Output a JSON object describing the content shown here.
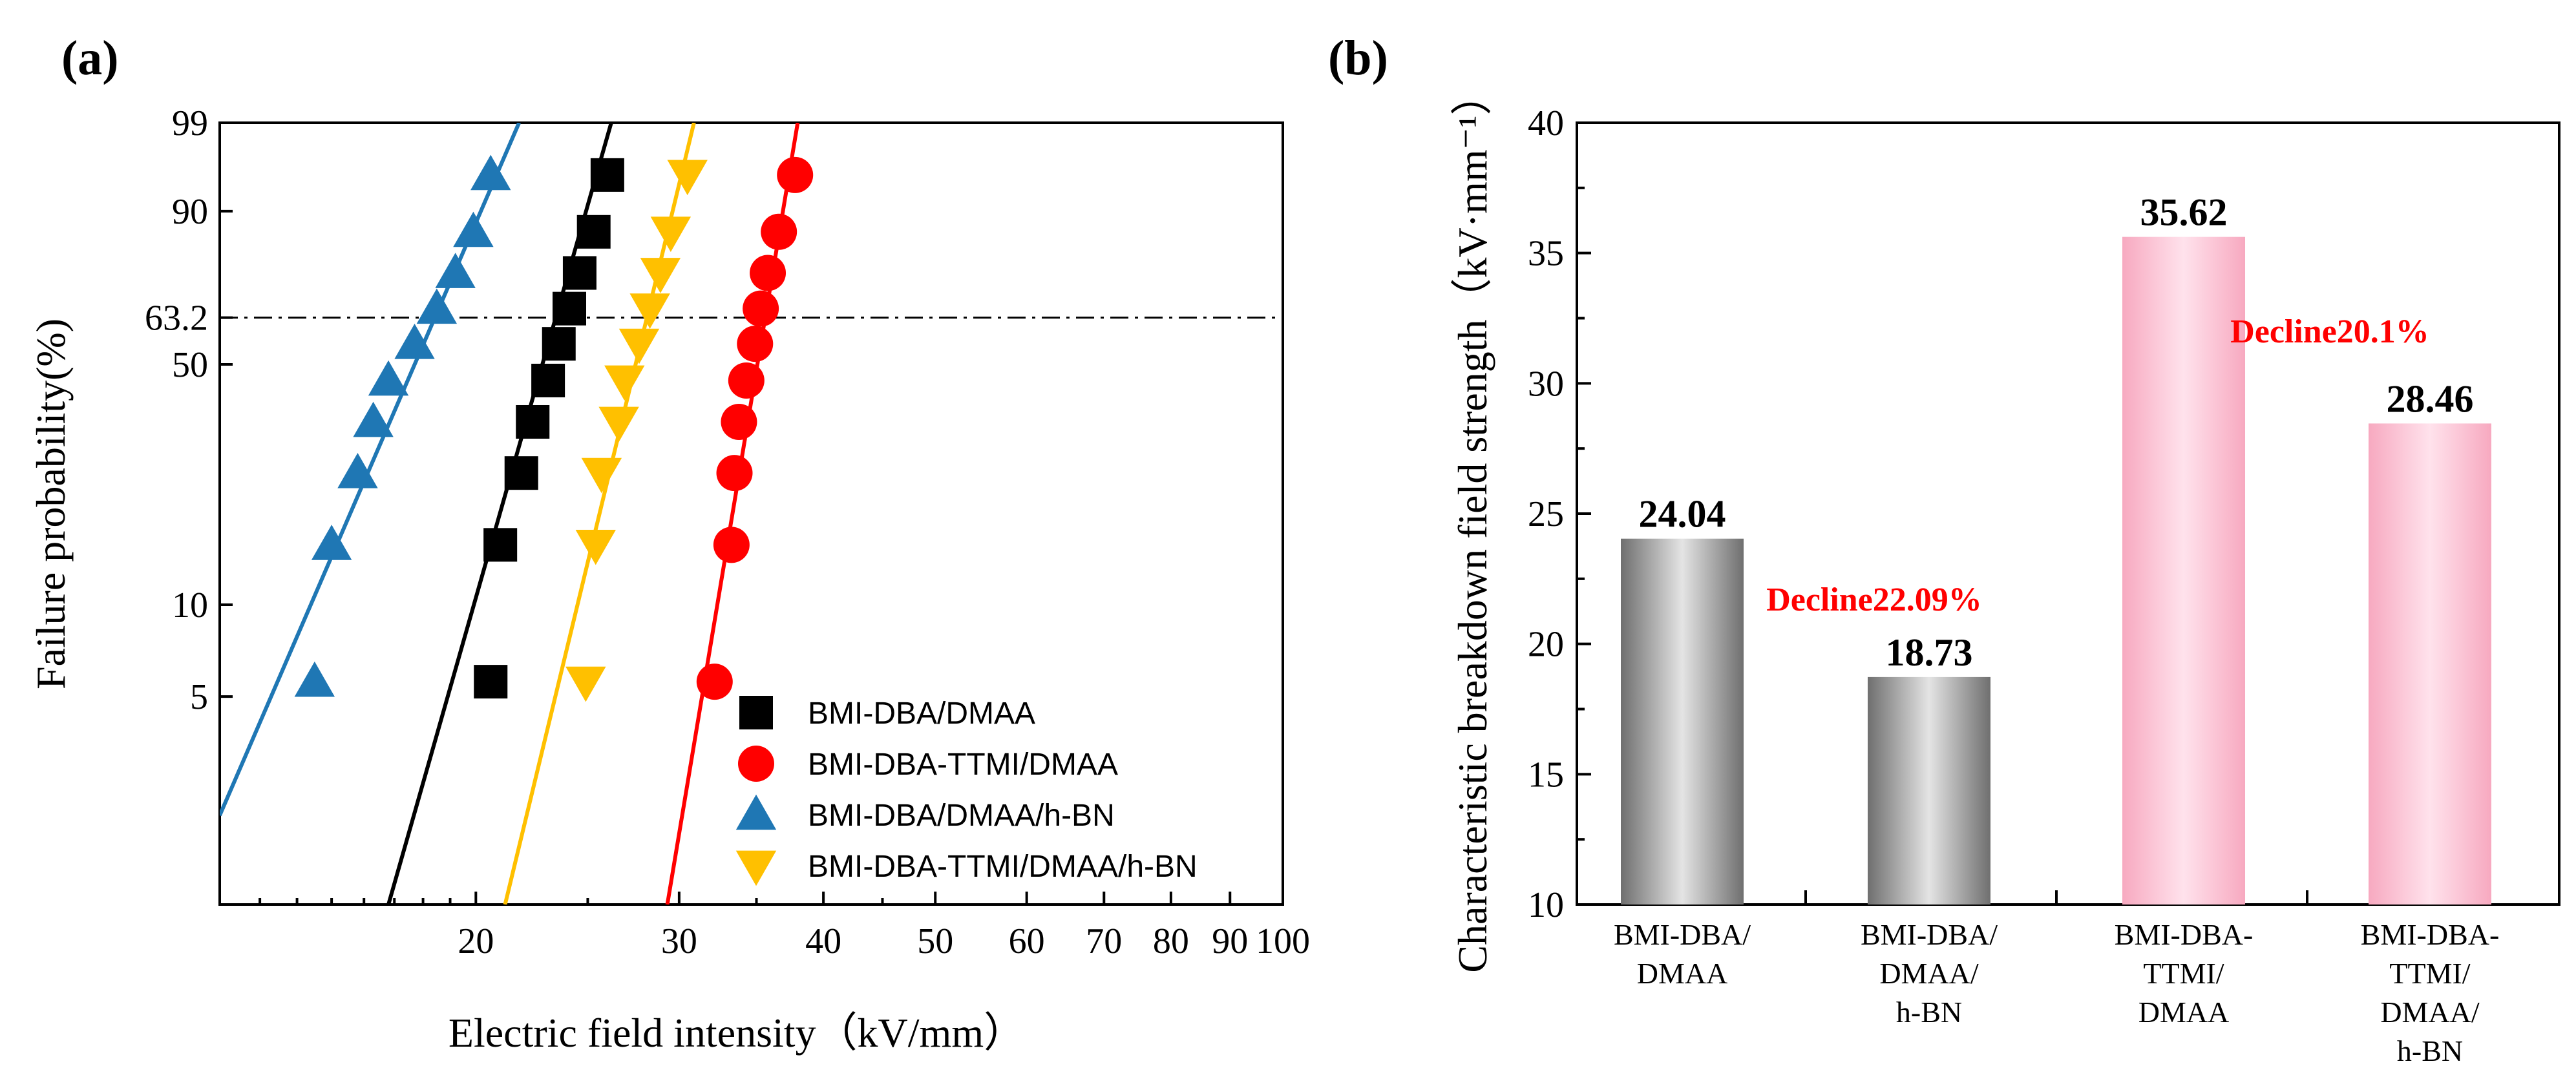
{
  "panel_a": {
    "label": "(a)",
    "xlabel": "Electric field intensity（kV/mm）",
    "ylabel": "Failure probability(%)",
    "x_ticks": [
      {
        "value": 20,
        "label": "20"
      },
      {
        "value": 30,
        "label": "30"
      },
      {
        "value": 40,
        "label": "40"
      },
      {
        "value": 50,
        "label": "50"
      },
      {
        "value": 60,
        "label": "60"
      },
      {
        "value": 70,
        "label": "70"
      },
      {
        "value": 80,
        "label": "80"
      },
      {
        "value": 90,
        "label": "90"
      },
      {
        "value": 100,
        "label": "100"
      }
    ],
    "y_ticks": [
      {
        "value": 5,
        "label": "5"
      },
      {
        "value": 10,
        "label": "10"
      },
      {
        "value": 50,
        "label": "50"
      },
      {
        "value": 63.2,
        "label": "63.2"
      },
      {
        "value": 90,
        "label": "90"
      },
      {
        "value": 99,
        "label": "99"
      }
    ]
  },
  "panel_b": {
    "label": "(b)",
    "ylabel": "Characteristic breakdown field strength（kV·mm⁻¹）",
    "y_ticks": [
      "10",
      "15",
      "20",
      "25",
      "30",
      "35",
      "40"
    ],
    "categories": [
      [
        "BMI-DBA/",
        "DMAA"
      ],
      [
        "BMI-DBA/",
        "DMAA/",
        "h-BN"
      ],
      [
        "BMI-DBA-",
        "TTMI/",
        "DMAA"
      ],
      [
        "BMI-DBA-",
        "TTMI/",
        "DMAA/",
        "h-BN"
      ]
    ],
    "value_labels": [
      "24.04",
      "18.73",
      "35.62",
      "28.46"
    ],
    "annotations": [
      "Decline22.09%",
      "Decline20.1%"
    ]
  },
  "chart_data": [
    {
      "type": "scatter",
      "title": "(a)",
      "xlabel": "Electric field intensity（kV/mm）",
      "ylabel": "Failure probability(%)",
      "xscale": "log",
      "yscale": "weibull",
      "xlim": [
        12,
        100
      ],
      "ylim": [
        1,
        99
      ],
      "reference_line": {
        "y": 63.2,
        "style": "dash-dot"
      },
      "legend_position": "lower-right",
      "series": [
        {
          "name": "BMI-DBA/DMAA",
          "marker": "square",
          "color": "#000000",
          "x": [
            20.6,
            21.0,
            21.9,
            22.4,
            23.1,
            23.6,
            24.1,
            24.6,
            25.3,
            26.0
          ],
          "y": [
            5.6,
            15.5,
            25.6,
            35.7,
            45.7,
            55.7,
            65.8,
            75.8,
            85.9,
            95.3
          ],
          "fit": {
            "x": [
              16.8,
              26.2
            ],
            "y": [
              1,
              99
            ]
          }
        },
        {
          "name": "BMI-DBA-TTMI/DMAA",
          "marker": "circle",
          "color": "#ff0000",
          "x": [
            32.2,
            33.3,
            33.5,
            33.8,
            34.3,
            34.9,
            35.3,
            35.8,
            36.6,
            37.8
          ],
          "y": [
            5.6,
            15.5,
            25.6,
            35.7,
            45.7,
            55.7,
            65.8,
            75.8,
            85.9,
            95.3
          ],
          "fit": {
            "x": [
              29.3,
              38.0
            ],
            "y": [
              1,
              99
            ]
          }
        },
        {
          "name": "BMI-DBA/DMAA/h-BN",
          "marker": "triangle-up",
          "color": "#1f77b4",
          "x": [
            14.5,
            15.0,
            15.8,
            16.3,
            16.8,
            17.7,
            18.5,
            19.2,
            19.9,
            20.6
          ],
          "y": [
            5.6,
            15.5,
            25.6,
            35.7,
            45.7,
            55.7,
            65.8,
            75.8,
            85.9,
            95.3
          ],
          "fit": {
            "x": [
              12.0,
              21.8
            ],
            "y": [
              2,
              99
            ]
          }
        },
        {
          "name": "BMI-DBA-TTMI/DMAA/h-BN",
          "marker": "triangle-down",
          "color": "#ffc000",
          "x": [
            24.9,
            25.4,
            25.7,
            26.6,
            26.9,
            27.7,
            28.3,
            28.9,
            29.5,
            30.5
          ],
          "y": [
            5.6,
            15.5,
            25.6,
            35.7,
            45.7,
            55.7,
            65.8,
            75.8,
            85.9,
            95.3
          ],
          "fit": {
            "x": [
              21.2,
              30.9
            ],
            "y": [
              1,
              99
            ]
          }
        }
      ]
    },
    {
      "type": "bar",
      "title": "(b)",
      "ylabel": "Characteristic breakdown field strength（kV·mm⁻¹）",
      "xlabel": "",
      "ylim": [
        10,
        40
      ],
      "categories": [
        "BMI-DBA/DMAA",
        "BMI-DBA/DMAA/h-BN",
        "BMI-DBA-TTMI/DMAA",
        "BMI-DBA-TTMI/DMAA/h-BN"
      ],
      "values": [
        24.04,
        18.73,
        35.62,
        28.46
      ],
      "colors": [
        "#909090",
        "#909090",
        "#f9b4c7",
        "#f9b4c7"
      ],
      "annotations": [
        {
          "text": "Decline22.09%",
          "color": "#ff0000"
        },
        {
          "text": "Decline20.1%",
          "color": "#ff0000"
        }
      ]
    }
  ]
}
